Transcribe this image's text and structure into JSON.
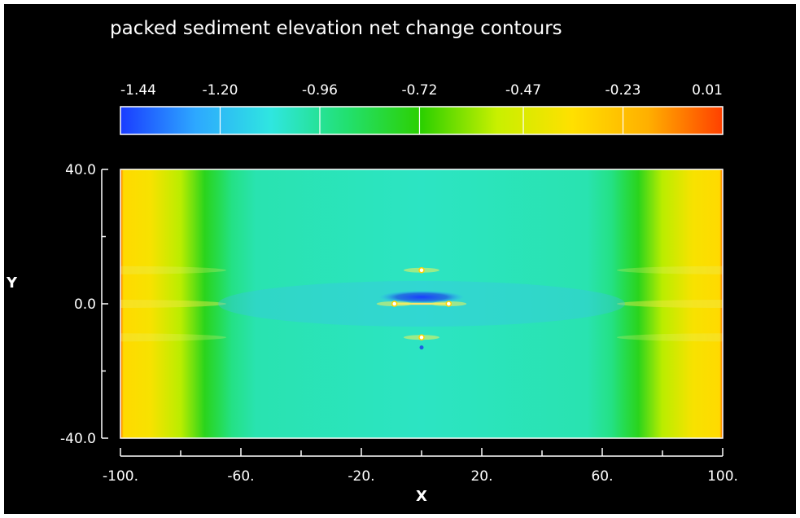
{
  "chart_data": {
    "type": "heatmap",
    "title": "packed sediment elevation net change contours",
    "xlabel": "X",
    "ylabel": "Y",
    "xlim": [
      -100,
      100
    ],
    "ylim": [
      -40,
      40
    ],
    "x_ticks": [
      -100,
      -60,
      -20,
      20,
      60,
      100
    ],
    "x_tick_labels": [
      "-100.",
      "-60.",
      "-20.",
      "20.",
      "60.",
      "100."
    ],
    "y_ticks": [
      40,
      0,
      -40
    ],
    "y_tick_labels": [
      "40.0",
      "0.0",
      "-40.0"
    ],
    "colorbar": {
      "min": -1.44,
      "max": 0.01,
      "tick_values": [
        -1.44,
        -1.2,
        -0.96,
        -0.72,
        -0.47,
        -0.23,
        0.01
      ],
      "tick_labels": [
        "-1.44",
        "-1.20",
        "-0.96",
        "-0.72",
        "-0.47",
        "-0.23",
        "0.01"
      ],
      "placement": "top"
    },
    "field_profile_x": {
      "x": [
        -100,
        -99,
        -90,
        -80,
        -72,
        -67,
        -63,
        -55,
        0,
        55,
        63,
        67,
        72,
        80,
        90,
        99,
        100
      ],
      "values": [
        -0.05,
        -0.33,
        -0.38,
        -0.55,
        -0.76,
        -0.85,
        -0.93,
        -1.0,
        -1.03,
        -1.0,
        -0.93,
        -0.85,
        -0.76,
        -0.55,
        -0.38,
        -0.33,
        -0.05
      ]
    },
    "central_trough": {
      "x": 0,
      "y": 2,
      "value": -1.44
    },
    "structures": [
      {
        "x": 0,
        "y": 10
      },
      {
        "x": -9,
        "y": 0
      },
      {
        "x": 9,
        "y": 0
      },
      {
        "x": 0,
        "y": -10
      }
    ],
    "colors": {
      "background": "#000000",
      "frame": "#ffffff",
      "colormap": [
        "#1a3cff",
        "#2da8ff",
        "#2fe6e0",
        "#22e070",
        "#2cd000",
        "#c8f000",
        "#ffe000",
        "#ffb000",
        "#ff4000"
      ]
    }
  }
}
